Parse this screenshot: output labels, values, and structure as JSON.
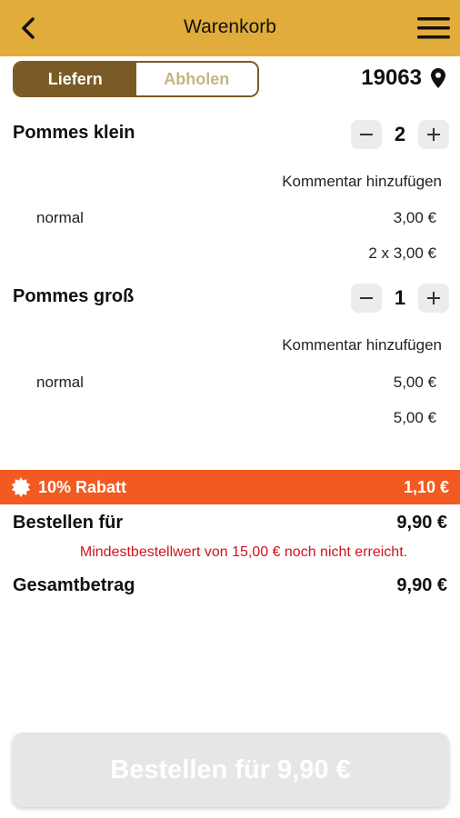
{
  "header": {
    "title": "Warenkorb"
  },
  "delivery_toggle": {
    "deliver": "Liefern",
    "pickup": "Abholen",
    "selected": "Liefern"
  },
  "location": {
    "postal_code": "19063"
  },
  "items": [
    {
      "name": "Pommes klein",
      "quantity": "2",
      "comment_link": "Kommentar hinzufügen",
      "option": "normal",
      "option_price": "3,00 €",
      "line_total": "2 x 3,00 €"
    },
    {
      "name": "Pommes groß",
      "quantity": "1",
      "comment_link": "Kommentar hinzufügen",
      "option": "normal",
      "option_price": "5,00 €",
      "line_total": "5,00 €"
    }
  ],
  "discount": {
    "label": "10% Rabatt",
    "amount": "1,10 €",
    "color": "#f25a22"
  },
  "summary": {
    "order_for_label": "Bestellen für",
    "order_for_value": "9,90 €",
    "warning": "Mindestbestellwert von 15,00 € noch nicht erreicht.",
    "total_label": "Gesamtbetrag",
    "total_value": "9,90 €"
  },
  "order_button": {
    "label": "Bestellen für 9,90 €",
    "enabled": false
  },
  "colors": {
    "header": "#e1ac3a",
    "toggle_active": "#7a5a25",
    "warning": "#d0141a"
  },
  "icons": {
    "back": "chevron-left-icon",
    "menu": "hamburger-menu-icon",
    "location": "map-pin-icon",
    "discount": "badge-icon"
  }
}
